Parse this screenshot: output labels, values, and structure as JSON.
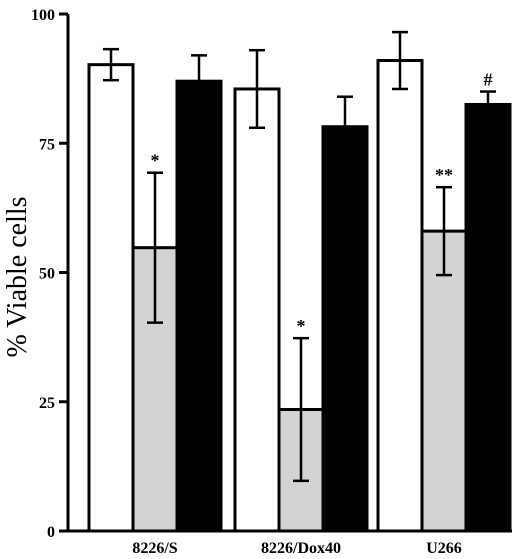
{
  "chart_data": {
    "type": "bar",
    "title": "",
    "xlabel": "",
    "ylabel": "% Viable cells",
    "ylim": [
      0,
      100
    ],
    "yticks": [
      "0",
      "25",
      "50",
      "75",
      "100"
    ],
    "grid": false,
    "categories": [
      "8226/S",
      "8226/Dox40",
      "U266"
    ],
    "series": [
      {
        "fill": "#ffffff",
        "values": [
          90.2,
          85.5,
          91
        ],
        "error": [
          3,
          7.5,
          5.5
        ],
        "annotations": [
          "",
          "",
          ""
        ]
      },
      {
        "fill": "#d3d3d3",
        "values": [
          54.8,
          23.5,
          58
        ],
        "error": [
          14.5,
          13.8,
          8.5
        ],
        "annotations": [
          "*",
          "*",
          "**"
        ]
      },
      {
        "fill": "#000000",
        "values": [
          87,
          78.2,
          82.5
        ],
        "error": [
          5,
          5.8,
          2.5
        ],
        "annotations": [
          "",
          "",
          "#"
        ]
      }
    ]
  }
}
